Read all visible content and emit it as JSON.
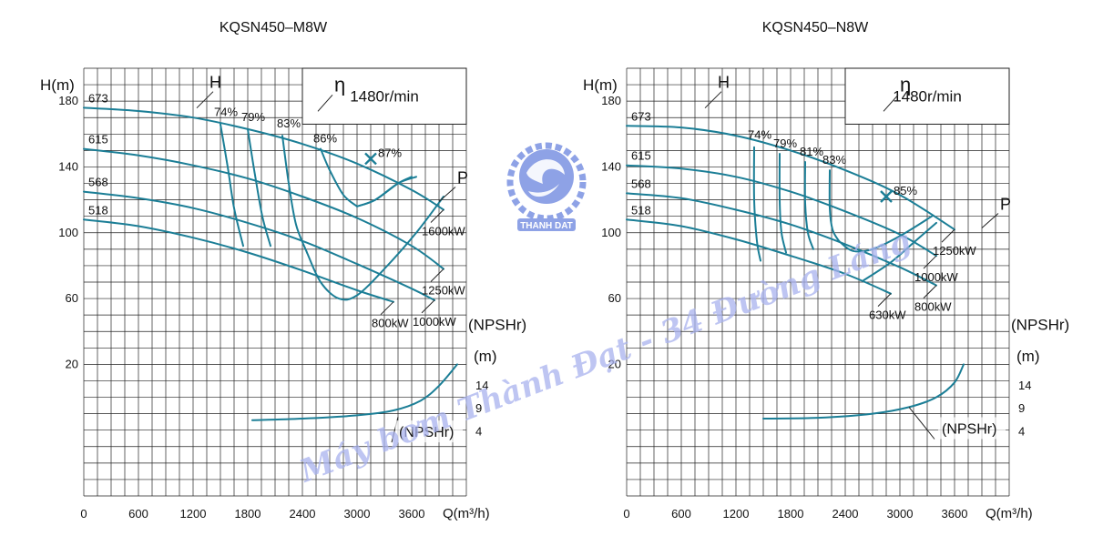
{
  "colors": {
    "curve": "#1b7e96",
    "grid": "#222222",
    "text": "#111111",
    "logo": "#8ea2e6",
    "watermark": "#a9b2ee"
  },
  "watermark": {
    "logo_text": "THANH DAT",
    "text": "Máy bơm Thành Đạt - 34 Đường Láng"
  },
  "chart_data": [
    {
      "type": "line",
      "title": "KQSN450–M8W",
      "speed": "1480r/min",
      "xlabel": "Q(m³/h)",
      "ylabel": "H(m)",
      "npsh_label": "(NPSHr)",
      "npsh_unit": "(m)",
      "npsh_curve_label": "(NPSHr)",
      "h_label": "H",
      "eta_label": "η",
      "p_label": "P",
      "xlim": [
        0,
        4200
      ],
      "ylim": [
        -60,
        200
      ],
      "x_ticks": [
        0,
        600,
        1200,
        1800,
        2400,
        3000,
        3600
      ],
      "y_ticks": [
        20,
        60,
        100,
        140,
        180
      ],
      "npsh_ticks": [
        {
          "label": "14",
          "y": 7
        },
        {
          "label": "9",
          "y": -7
        },
        {
          "label": "4",
          "y": -21
        }
      ],
      "h_curves": [
        {
          "impeller": "673",
          "points": [
            [
              0,
              176
            ],
            [
              600,
              174
            ],
            [
              1200,
              170
            ],
            [
              1800,
              163
            ],
            [
              2400,
              154
            ],
            [
              3000,
              142
            ],
            [
              3600,
              126
            ],
            [
              3950,
              114
            ]
          ]
        },
        {
          "impeller": "615",
          "points": [
            [
              0,
              151
            ],
            [
              600,
              147
            ],
            [
              1200,
              141
            ],
            [
              1800,
              133
            ],
            [
              2400,
              122
            ],
            [
              3000,
              109
            ],
            [
              3600,
              92
            ],
            [
              3950,
              78
            ]
          ]
        },
        {
          "impeller": "568",
          "points": [
            [
              0,
              125
            ],
            [
              600,
              121
            ],
            [
              1200,
              115
            ],
            [
              1800,
              106
            ],
            [
              2400,
              95
            ],
            [
              3000,
              81
            ],
            [
              3600,
              66
            ],
            [
              3850,
              59
            ]
          ]
        },
        {
          "impeller": "518",
          "points": [
            [
              0,
              108
            ],
            [
              600,
              104
            ],
            [
              1200,
              97
            ],
            [
              1800,
              88
            ],
            [
              2400,
              77
            ],
            [
              3000,
              65
            ],
            [
              3400,
              58
            ]
          ]
        }
      ],
      "efficiency_curves": [
        {
          "label": "74%",
          "points": [
            [
              1500,
              166
            ],
            [
              1580,
              140
            ],
            [
              1650,
              115
            ],
            [
              1750,
              92
            ]
          ]
        },
        {
          "label": "79%",
          "points": [
            [
              1800,
              163
            ],
            [
              1880,
              135
            ],
            [
              1960,
              110
            ],
            [
              2050,
              92
            ]
          ]
        },
        {
          "label": "83%",
          "points": [
            [
              2180,
              159
            ],
            [
              2250,
              130
            ],
            [
              2330,
              105
            ],
            [
              2450,
              88
            ]
          ]
        },
        {
          "label": "86%",
          "points": [
            [
              2600,
              151
            ],
            [
              2700,
              138
            ],
            [
              2850,
              123
            ],
            [
              3000,
              116
            ]
          ]
        },
        {
          "label": "86%",
          "points": [
            [
              3000,
              116
            ],
            [
              3200,
              120
            ],
            [
              3450,
              130
            ],
            [
              3600,
              134
            ]
          ]
        }
      ],
      "efficiency_loops": [
        {
          "points": [
            [
              3000,
              116
            ],
            [
              3200,
              120
            ],
            [
              3450,
              130
            ],
            [
              3650,
              134
            ]
          ]
        },
        {
          "points": [
            [
              2450,
              88
            ],
            [
              2600,
              70
            ],
            [
              2800,
              60
            ],
            [
              3000,
              62
            ],
            [
              3300,
              78
            ],
            [
              3650,
              100
            ],
            [
              3950,
              122
            ]
          ]
        }
      ],
      "best_efficiency": {
        "label": "87%",
        "x": 3150,
        "y": 145
      },
      "power_labels": [
        {
          "label": "1600kW",
          "x": 3950,
          "y": 114
        },
        {
          "label": "1250kW",
          "x": 3950,
          "y": 78
        },
        {
          "label": "1000kW",
          "x": 3850,
          "y": 59
        },
        {
          "label": "800kW",
          "x": 3400,
          "y": 58
        }
      ],
      "efficiency_labels": [
        {
          "label": "74%",
          "x": 1430,
          "y": 171
        },
        {
          "label": "79%",
          "x": 1730,
          "y": 168
        },
        {
          "label": "83%",
          "x": 2120,
          "y": 164
        },
        {
          "label": "86%",
          "x": 2520,
          "y": 155
        }
      ],
      "npsh_curve": [
        [
          1850,
          -14
        ],
        [
          2400,
          -13
        ],
        [
          3000,
          -11
        ],
        [
          3400,
          -8
        ],
        [
          3700,
          -2
        ],
        [
          3900,
          7
        ],
        [
          4100,
          20
        ]
      ]
    },
    {
      "type": "line",
      "title": "KQSN450–N8W",
      "speed": "1480r/min",
      "xlabel": "Q(m³/h)",
      "ylabel": "H(m)",
      "npsh_label": "(NPSHr)",
      "npsh_unit": "(m)",
      "npsh_curve_label": "(NPSHr)",
      "h_label": "H",
      "eta_label": "η",
      "p_label": "P",
      "xlim": [
        0,
        4200
      ],
      "ylim": [
        -60,
        200
      ],
      "x_ticks": [
        0,
        600,
        1200,
        1800,
        2400,
        3000,
        3600
      ],
      "y_ticks": [
        20,
        60,
        100,
        140,
        180
      ],
      "npsh_ticks": [
        {
          "label": "14",
          "y": 7
        },
        {
          "label": "9",
          "y": -7
        },
        {
          "label": "4",
          "y": -21
        }
      ],
      "h_curves": [
        {
          "impeller": "673",
          "points": [
            [
              0,
              165
            ],
            [
              600,
              164
            ],
            [
              1200,
              159
            ],
            [
              1800,
              150
            ],
            [
              2400,
              138
            ],
            [
              3000,
              123
            ],
            [
              3600,
              102
            ]
          ]
        },
        {
          "impeller": "615",
          "points": [
            [
              0,
              141
            ],
            [
              600,
              139
            ],
            [
              1200,
              134
            ],
            [
              1800,
              125
            ],
            [
              2400,
              113
            ],
            [
              3000,
              99
            ],
            [
              3400,
              86
            ]
          ]
        },
        {
          "impeller": "568",
          "points": [
            [
              0,
              124
            ],
            [
              600,
              121
            ],
            [
              1200,
              114
            ],
            [
              1800,
              105
            ],
            [
              2400,
              93
            ],
            [
              3000,
              79
            ],
            [
              3400,
              68
            ]
          ]
        },
        {
          "impeller": "518",
          "points": [
            [
              0,
              108
            ],
            [
              600,
              104
            ],
            [
              1200,
              96
            ],
            [
              1800,
              86
            ],
            [
              2400,
              75
            ],
            [
              2900,
              63
            ]
          ]
        }
      ],
      "efficiency_curves": [
        {
          "label": "74%",
          "points": [
            [
              1400,
              152
            ],
            [
              1400,
              120
            ],
            [
              1430,
              95
            ],
            [
              1470,
              83
            ]
          ]
        },
        {
          "label": "79%",
          "points": [
            [
              1680,
              148
            ],
            [
              1680,
              120
            ],
            [
              1700,
              100
            ],
            [
              1750,
              88
            ]
          ]
        },
        {
          "label": "81%",
          "points": [
            [
              1960,
              143
            ],
            [
              1960,
              118
            ],
            [
              1990,
              100
            ],
            [
              2050,
              90
            ]
          ]
        },
        {
          "label": "83%",
          "points": [
            [
              2230,
              138
            ],
            [
              2230,
              115
            ],
            [
              2260,
              102
            ],
            [
              2330,
              95
            ]
          ]
        }
      ],
      "efficiency_loops": [
        {
          "points": [
            [
              2330,
              95
            ],
            [
              2480,
              89
            ],
            [
              2700,
              90
            ],
            [
              3000,
              98
            ],
            [
              3350,
              110
            ]
          ]
        },
        {
          "points": [
            [
              2600,
              71
            ],
            [
              2900,
              82
            ],
            [
              3150,
              94
            ],
            [
              3400,
              106
            ]
          ]
        }
      ],
      "best_efficiency": {
        "label": "85%",
        "x": 2850,
        "y": 122
      },
      "power_labels": [
        {
          "label": "1250kW",
          "x": 3600,
          "y": 102
        },
        {
          "label": "1000kW",
          "x": 3400,
          "y": 86
        },
        {
          "label": "800kW",
          "x": 3400,
          "y": 68
        },
        {
          "label": "630kW",
          "x": 2900,
          "y": 63
        }
      ],
      "efficiency_labels": [
        {
          "label": "74%",
          "x": 1330,
          "y": 157
        },
        {
          "label": "79%",
          "x": 1610,
          "y": 152
        },
        {
          "label": "81%",
          "x": 1900,
          "y": 147
        },
        {
          "label": "83%",
          "x": 2150,
          "y": 142
        }
      ],
      "npsh_curve": [
        [
          1500,
          -13
        ],
        [
          2100,
          -12.5
        ],
        [
          2700,
          -10
        ],
        [
          3100,
          -6
        ],
        [
          3400,
          0
        ],
        [
          3600,
          9
        ],
        [
          3700,
          20
        ]
      ]
    }
  ]
}
